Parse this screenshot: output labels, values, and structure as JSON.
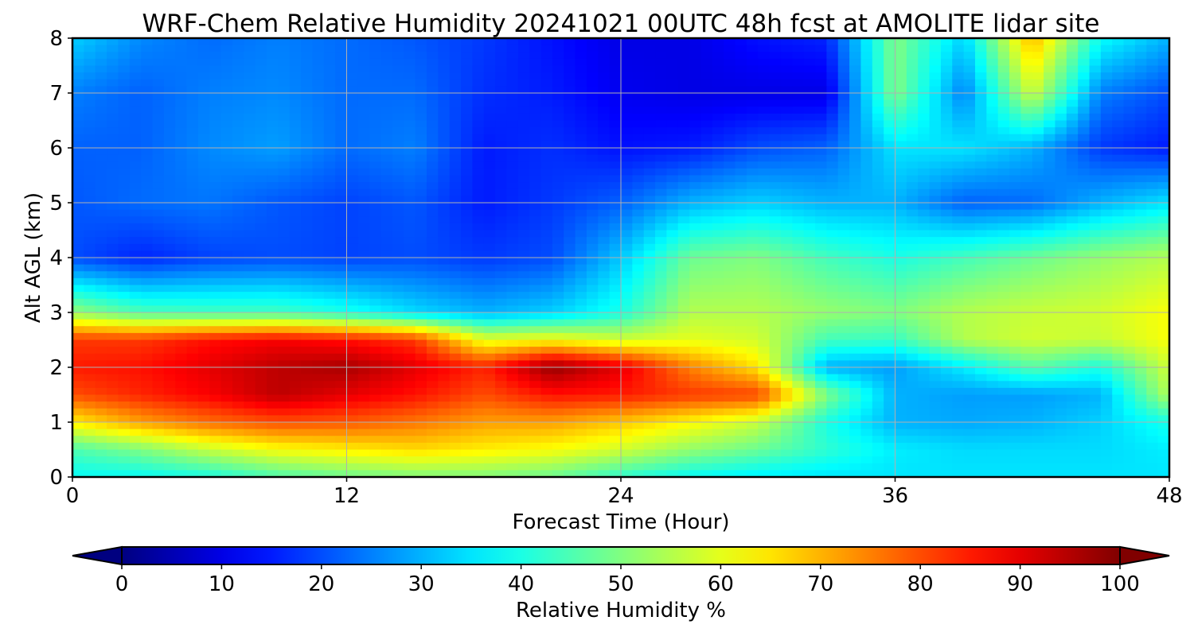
{
  "chart_data": {
    "type": "heatmap",
    "title": "WRF-Chem Relative Humidity 20241021 00UTC 48h fcst at AMOLITE lidar site",
    "xlabel": "Forecast Time (Hour)",
    "ylabel": "Alt AGL (km)",
    "xlim": [
      0,
      48
    ],
    "ylim": [
      0,
      8
    ],
    "xticks": [
      0,
      12,
      24,
      36,
      48
    ],
    "yticks": [
      0,
      1,
      2,
      3,
      4,
      5,
      6,
      7,
      8
    ],
    "grid": true,
    "colormap": "jet",
    "colorbar": {
      "label": "Relative Humidity %",
      "range": [
        0,
        100
      ],
      "ticks": [
        0,
        10,
        20,
        30,
        40,
        50,
        60,
        70,
        80,
        90,
        100
      ],
      "extend": "both",
      "placement": "bottom"
    },
    "x": [
      0,
      3,
      6,
      9,
      12,
      15,
      18,
      21,
      24,
      27,
      30,
      33,
      36,
      39,
      42,
      45,
      48
    ],
    "y": [
      0,
      0.5,
      1,
      1.5,
      2,
      2.5,
      3,
      4,
      5,
      6,
      7,
      8
    ],
    "z": [
      [
        38,
        38,
        40,
        45,
        48,
        50,
        50,
        48,
        42,
        38,
        36,
        35,
        35,
        35,
        35,
        35,
        35
      ],
      [
        45,
        50,
        57,
        62,
        64,
        66,
        64,
        62,
        58,
        52,
        48,
        42,
        36,
        34,
        34,
        34,
        36
      ],
      [
        64,
        72,
        77,
        80,
        79,
        76,
        72,
        72,
        68,
        63,
        57,
        40,
        30,
        29,
        30,
        33,
        40
      ],
      [
        80,
        84,
        88,
        94,
        90,
        86,
        80,
        86,
        85,
        82,
        81,
        50,
        30,
        28,
        28,
        30,
        55
      ],
      [
        85,
        86,
        90,
        94,
        96,
        90,
        84,
        98,
        90,
        75,
        65,
        30,
        28,
        36,
        46,
        40,
        58
      ],
      [
        82,
        82,
        86,
        88,
        86,
        82,
        60,
        62,
        58,
        60,
        58,
        44,
        43,
        55,
        58,
        57,
        62
      ],
      [
        52,
        45,
        44,
        44,
        40,
        34,
        30,
        33,
        40,
        55,
        55,
        52,
        50,
        55,
        57,
        58,
        62
      ],
      [
        20,
        16,
        19,
        20,
        19,
        20,
        18,
        20,
        32,
        48,
        50,
        44,
        40,
        44,
        48,
        52,
        55
      ],
      [
        21,
        23,
        24,
        21,
        19,
        21,
        15,
        18,
        22,
        30,
        33,
        30,
        30,
        22,
        23,
        30,
        35
      ],
      [
        22,
        22,
        26,
        28,
        23,
        25,
        15,
        17,
        14,
        15,
        20,
        22,
        35,
        35,
        30,
        18,
        15
      ],
      [
        25,
        22,
        25,
        26,
        23,
        23,
        17,
        15,
        11,
        10,
        10,
        10,
        50,
        25,
        58,
        25,
        20
      ],
      [
        33,
        26,
        23,
        25,
        23,
        21,
        18,
        14,
        10,
        10,
        14,
        16,
        50,
        33,
        70,
        38,
        30
      ]
    ]
  }
}
